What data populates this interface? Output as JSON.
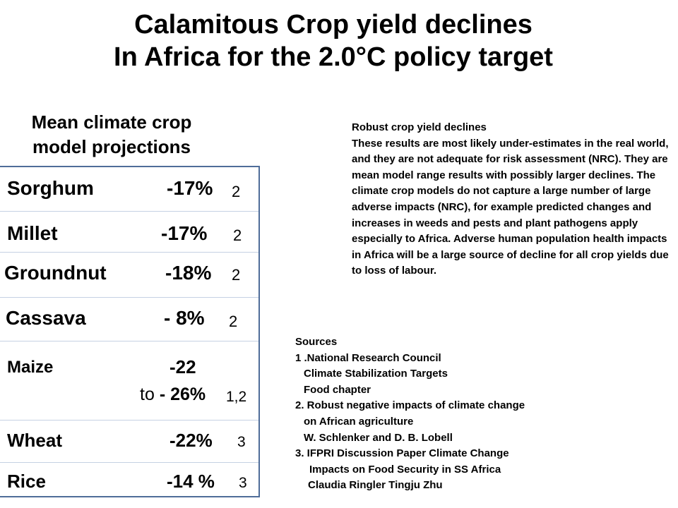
{
  "title": {
    "line1": "Calamitous Crop yield declines",
    "line2": "In Africa for the 2.0°C policy target"
  },
  "subtitle": {
    "line1": "Mean climate crop",
    "line2": "model projections"
  },
  "crops": [
    {
      "name": "Sorghum",
      "change": "-17%",
      "ref": "2"
    },
    {
      "name": "Millet",
      "change": "-17%",
      "ref": "2"
    },
    {
      "name": "Groundnut",
      "change": "-18%",
      "ref": "2"
    },
    {
      "name": "Cassava",
      "change": "- 8%",
      "ref": "2"
    },
    {
      "name": "Maize",
      "change": "-22",
      "change_prefix": "to",
      "change_line2": "- 26%",
      "ref": "1,2"
    },
    {
      "name": "Wheat",
      "change": "-22%",
      "ref": "3"
    },
    {
      "name": "Rice",
      "change": "-14 %",
      "ref": "3"
    }
  ],
  "notes": {
    "heading": "Robust crop yield declines",
    "body": "These results are most likely under-estimates in the real world,  and they are not adequate for risk assessment (NRC). They are mean model range results with possibly larger declines. The climate crop models do not capture a large number of large adverse impacts (NRC), for example predicted changes and increases in weeds and pests and plant pathogens apply especially to Africa. Adverse human population health impacts in Africa will be  a large source of  decline for all crop yields due to loss of labour."
  },
  "sources": {
    "heading": "Sources",
    "lines": [
      "1 .National Research Council",
      "   Climate Stabilization Targets",
      "   Food chapter",
      "2. Robust negative impacts of climate change",
      "   on African agriculture",
      "   W. Schlenker and D. B. Lobell",
      "3. IFPRI Discussion Paper Climate Change",
      "    Impacts on Food Security in SS Africa",
      "    Claudia Ringler Tingju Zhu"
    ]
  }
}
